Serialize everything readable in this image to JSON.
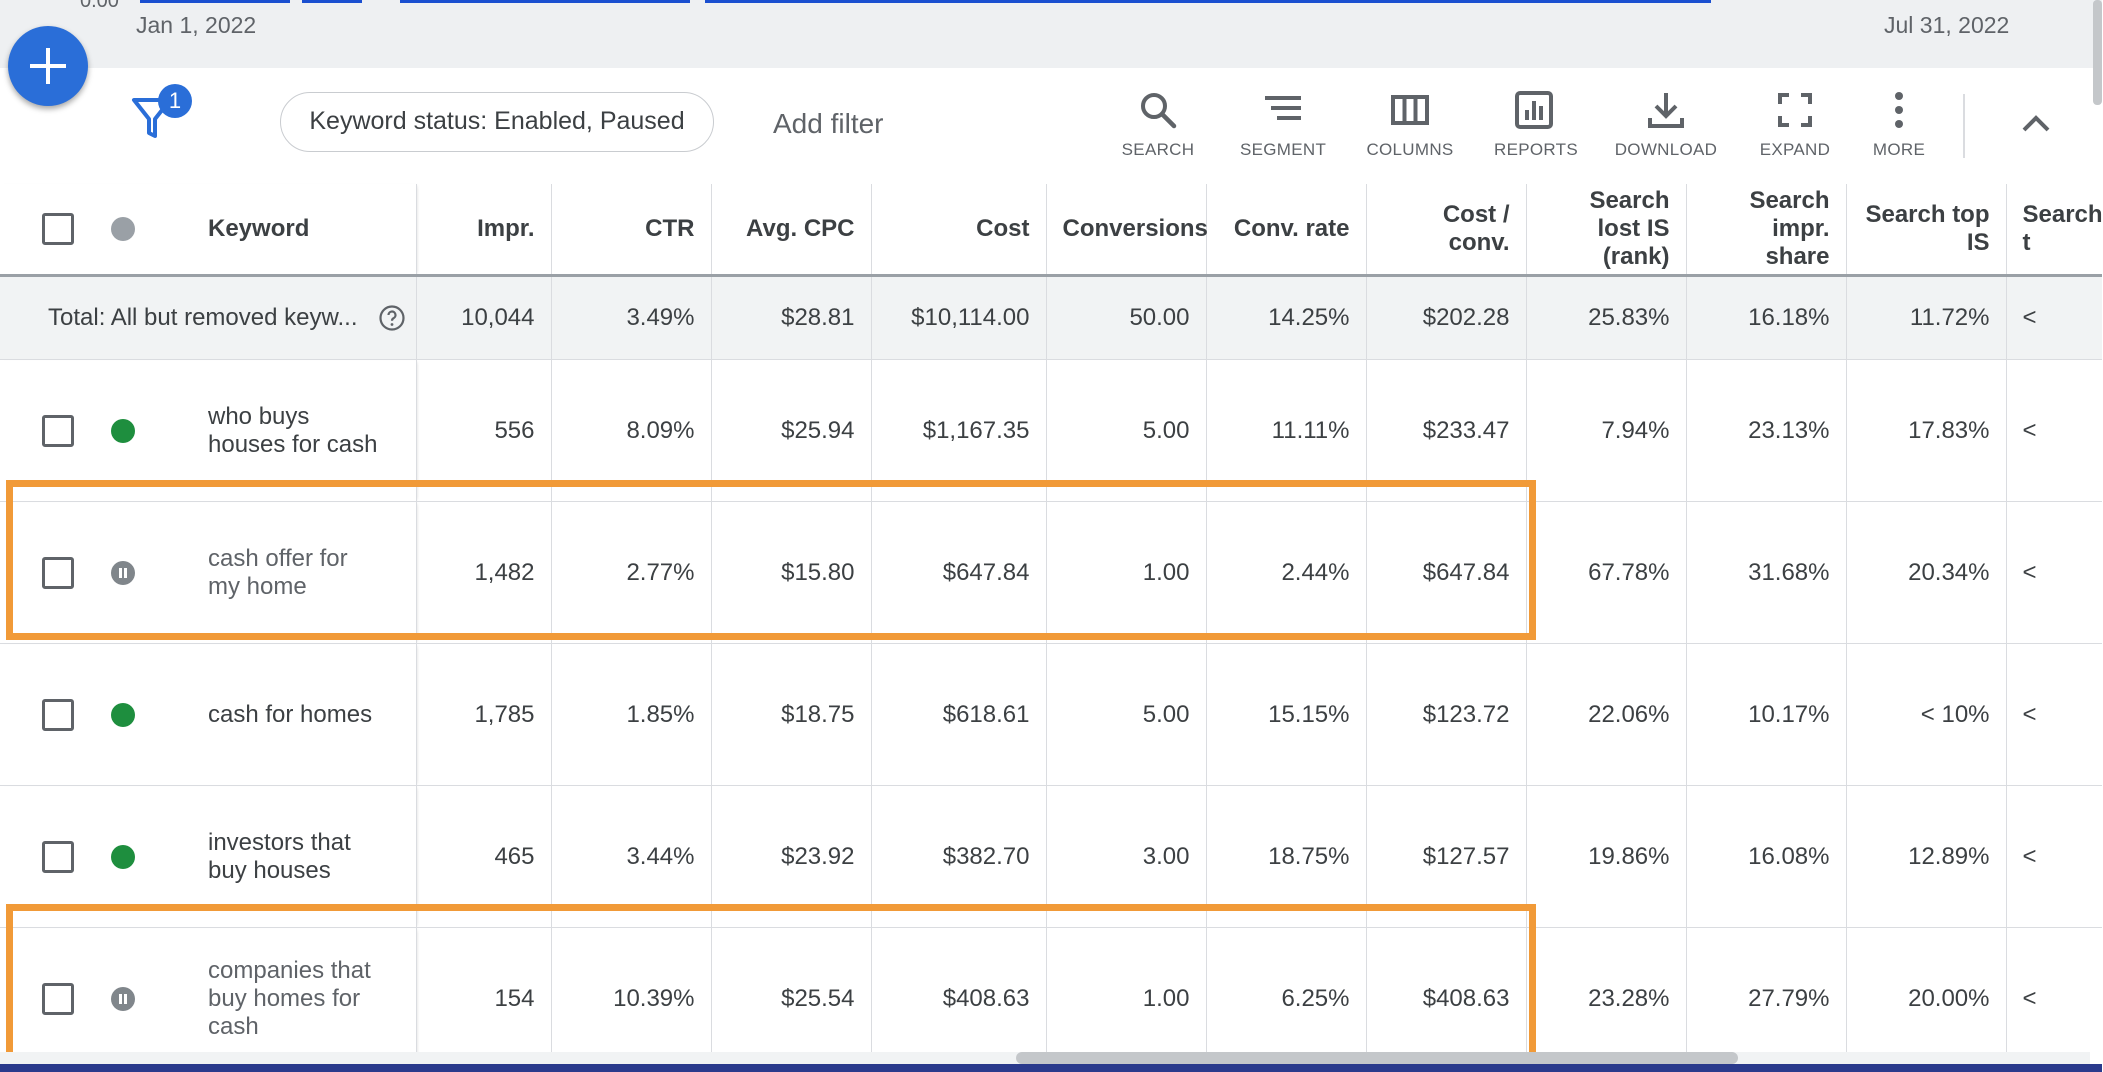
{
  "chart": {
    "date_start": "Jan 1, 2022",
    "date_end": "Jul 31, 2022",
    "y_axis_clipped": "0.00"
  },
  "filters": {
    "badge_count": "1",
    "status_chip": "Keyword status: Enabled, Paused",
    "add_filter": "Add filter"
  },
  "toolbar": {
    "search": "SEARCH",
    "segment": "SEGMENT",
    "columns": "COLUMNS",
    "reports": "REPORTS",
    "download": "DOWNLOAD",
    "expand": "EXPAND",
    "more": "MORE"
  },
  "table": {
    "columns": [
      "Keyword",
      "Impr.",
      "CTR",
      "Avg. CPC",
      "Cost",
      "Conversions",
      "Conv. rate",
      "Cost / conv.",
      "Search lost IS (rank)",
      "Search impr. share",
      "Search top IS",
      "Search t"
    ],
    "total": {
      "label": "Total: All but removed keyw...",
      "values": [
        "10,044",
        "3.49%",
        "$28.81",
        "$10,114.00",
        "50.00",
        "14.25%",
        "$202.28",
        "25.83%",
        "16.18%",
        "11.72%",
        "<"
      ]
    },
    "rows": [
      {
        "keyword": "who buys houses for cash",
        "status": "enabled",
        "values": [
          "556",
          "8.09%",
          "$25.94",
          "$1,167.35",
          "5.00",
          "11.11%",
          "$233.47",
          "7.94%",
          "23.13%",
          "17.83%",
          "<"
        ]
      },
      {
        "keyword": "cash offer for my home",
        "status": "paused",
        "values": [
          "1,482",
          "2.77%",
          "$15.80",
          "$647.84",
          "1.00",
          "2.44%",
          "$647.84",
          "67.78%",
          "31.68%",
          "20.34%",
          "<"
        ]
      },
      {
        "keyword": "cash for homes",
        "status": "enabled",
        "values": [
          "1,785",
          "1.85%",
          "$18.75",
          "$618.61",
          "5.00",
          "15.15%",
          "$123.72",
          "22.06%",
          "10.17%",
          "< 10%",
          "<"
        ]
      },
      {
        "keyword": "investors that buy houses",
        "status": "enabled",
        "values": [
          "465",
          "3.44%",
          "$23.92",
          "$382.70",
          "3.00",
          "18.75%",
          "$127.57",
          "19.86%",
          "16.08%",
          "12.89%",
          "<"
        ]
      },
      {
        "keyword": "companies that buy homes for cash",
        "status": "paused",
        "values": [
          "154",
          "10.39%",
          "$25.54",
          "$408.63",
          "1.00",
          "6.25%",
          "$408.63",
          "23.28%",
          "27.79%",
          "20.00%",
          "<"
        ]
      }
    ]
  },
  "colors": {
    "highlight": "#f19a38",
    "accent": "#2a6ed8",
    "enabled": "#1e8e3e",
    "paused": "#80868b"
  }
}
